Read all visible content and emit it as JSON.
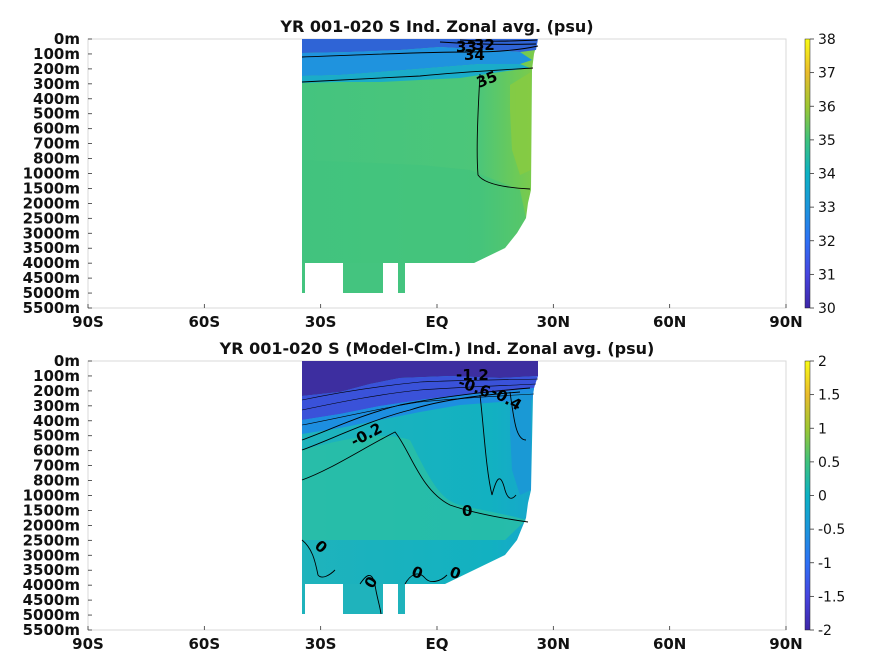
{
  "colors": {
    "deep": "#3b2a8f",
    "blue": "#2e62d4",
    "cyan": "#1eaad0",
    "teal": "#26b8ac",
    "green": "#45c57e",
    "lime": "#7ccb4a",
    "yellow": "#f6e836",
    "land": "#ffffff",
    "contour": "#000000"
  },
  "chart_data": [
    {
      "type": "heatmap",
      "title": "YR 001-020 S Ind. Zonal avg. (psu)",
      "x_ticks": [
        "90S",
        "60S",
        "30S",
        "EQ",
        "30N",
        "60N",
        "90N"
      ],
      "y_ticks": [
        "0m",
        "100m",
        "200m",
        "300m",
        "400m",
        "500m",
        "600m",
        "700m",
        "800m",
        "1000m",
        "1500m",
        "2000m",
        "2500m",
        "3000m",
        "3500m",
        "4000m",
        "4500m",
        "5000m",
        "5500m"
      ],
      "colorbar": {
        "min": 30,
        "max": 38,
        "ticks": [
          "30",
          "31",
          "32",
          "33",
          "34",
          "35",
          "36",
          "37",
          "38"
        ]
      },
      "contour_labels": [
        "35",
        "34",
        "33",
        "32"
      ]
    },
    {
      "type": "heatmap",
      "title": "YR 001-020 S (Model-Clm.) Ind. Zonal avg. (psu)",
      "x_ticks": [
        "90S",
        "60S",
        "30S",
        "EQ",
        "30N",
        "60N",
        "90N"
      ],
      "y_ticks": [
        "0m",
        "100m",
        "200m",
        "300m",
        "400m",
        "500m",
        "600m",
        "700m",
        "800m",
        "1000m",
        "1500m",
        "2000m",
        "2500m",
        "3000m",
        "3500m",
        "4000m",
        "4500m",
        "5000m",
        "5500m"
      ],
      "colorbar": {
        "min": -2,
        "max": 2,
        "ticks": [
          "-2",
          "-1.5",
          "-1",
          "-0.5",
          "0",
          "0.5",
          "1",
          "1.5",
          "2"
        ]
      },
      "contour_labels": [
        "-0.2",
        "0",
        "0",
        "0",
        "0",
        "0",
        "-0.4",
        "-0.6",
        "-1.2"
      ]
    }
  ]
}
